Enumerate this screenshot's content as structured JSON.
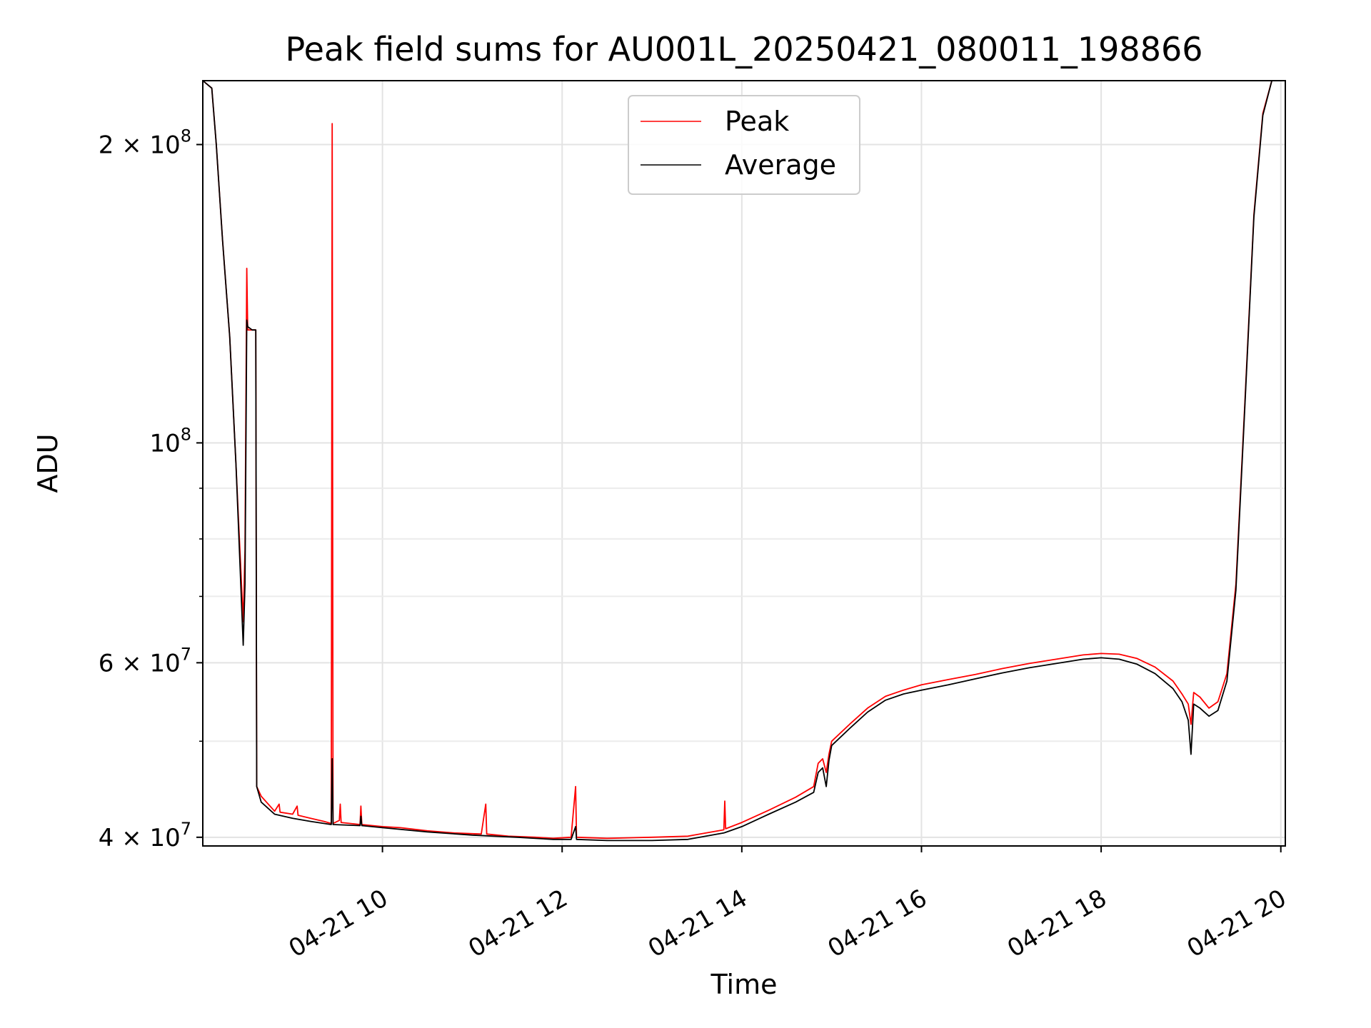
{
  "chart_data": {
    "type": "line",
    "title": "Peak field sums for AU001L_20250421_080011_198866",
    "xlabel": "Time",
    "ylabel": "ADU",
    "yscale": "log",
    "xlim": [
      8.0,
      20.05
    ],
    "ylim": [
      39200000,
      232000000
    ],
    "grid": true,
    "legend_position": "top-center",
    "x_ticks": [
      {
        "value": 10,
        "label": "04-21 10"
      },
      {
        "value": 12,
        "label": "04-21 12"
      },
      {
        "value": 14,
        "label": "04-21 14"
      },
      {
        "value": 16,
        "label": "04-21 16"
      },
      {
        "value": 18,
        "label": "04-21 18"
      },
      {
        "value": 20,
        "label": "04-21 20"
      }
    ],
    "y_ticks": [
      {
        "value": 40000000,
        "mantissa": "4",
        "exponent": "7"
      },
      {
        "value": 60000000,
        "mantissa": "6",
        "exponent": "7"
      },
      {
        "value": 100000000,
        "mantissa": "",
        "exponent": "8"
      },
      {
        "value": 200000000,
        "mantissa": "2",
        "exponent": "8"
      }
    ],
    "y_times_sign": "×",
    "y_base": "10",
    "y_minor_ticks": [
      50000000,
      70000000,
      80000000,
      90000000
    ],
    "series": [
      {
        "name": "Peak",
        "color": "#ff0000",
        "points": [
          [
            8.0,
            232000000
          ],
          [
            8.1,
            228000000
          ],
          [
            8.15,
            200000000
          ],
          [
            8.22,
            160000000
          ],
          [
            8.3,
            128000000
          ],
          [
            8.37,
            95000000
          ],
          [
            8.45,
            66000000
          ],
          [
            8.47,
            78000000
          ],
          [
            8.49,
            150000000
          ],
          [
            8.5,
            130000000
          ],
          [
            8.55,
            130000000
          ],
          [
            8.59,
            130000000
          ],
          [
            8.6,
            45000000
          ],
          [
            8.65,
            44000000
          ],
          [
            8.8,
            42500000
          ],
          [
            8.85,
            43200000
          ],
          [
            8.86,
            42400000
          ],
          [
            9.0,
            42200000
          ],
          [
            9.05,
            43000000
          ],
          [
            9.06,
            42100000
          ],
          [
            9.2,
            41800000
          ],
          [
            9.35,
            41500000
          ],
          [
            9.43,
            41300000
          ],
          [
            9.44,
            210000000
          ],
          [
            9.45,
            41300000
          ],
          [
            9.52,
            41600000
          ],
          [
            9.53,
            43200000
          ],
          [
            9.54,
            41400000
          ],
          [
            9.75,
            41200000
          ],
          [
            9.76,
            43000000
          ],
          [
            9.77,
            41200000
          ],
          [
            10.0,
            41000000
          ],
          [
            10.2,
            40900000
          ],
          [
            10.5,
            40600000
          ],
          [
            10.8,
            40400000
          ],
          [
            11.1,
            40300000
          ],
          [
            11.15,
            43200000
          ],
          [
            11.16,
            40300000
          ],
          [
            11.4,
            40100000
          ],
          [
            11.7,
            40000000
          ],
          [
            11.9,
            39900000
          ],
          [
            12.1,
            40000000
          ],
          [
            12.15,
            45000000
          ],
          [
            12.16,
            40000000
          ],
          [
            12.5,
            39900000
          ],
          [
            13.0,
            40000000
          ],
          [
            13.4,
            40100000
          ],
          [
            13.8,
            40700000
          ],
          [
            13.81,
            43500000
          ],
          [
            13.82,
            40800000
          ],
          [
            14.0,
            41400000
          ],
          [
            14.3,
            42600000
          ],
          [
            14.6,
            43900000
          ],
          [
            14.8,
            45000000
          ],
          [
            14.85,
            47500000
          ],
          [
            14.9,
            48000000
          ],
          [
            14.94,
            46500000
          ],
          [
            14.97,
            48500000
          ],
          [
            15.0,
            50000000
          ],
          [
            15.2,
            52000000
          ],
          [
            15.4,
            54000000
          ],
          [
            15.6,
            55500000
          ],
          [
            15.8,
            56300000
          ],
          [
            16.0,
            57000000
          ],
          [
            16.3,
            57700000
          ],
          [
            16.6,
            58400000
          ],
          [
            16.9,
            59200000
          ],
          [
            17.2,
            59900000
          ],
          [
            17.5,
            60500000
          ],
          [
            17.8,
            61100000
          ],
          [
            18.0,
            61300000
          ],
          [
            18.2,
            61200000
          ],
          [
            18.4,
            60600000
          ],
          [
            18.6,
            59400000
          ],
          [
            18.8,
            57500000
          ],
          [
            18.9,
            55800000
          ],
          [
            18.97,
            54500000
          ],
          [
            19.0,
            52000000
          ],
          [
            19.03,
            56000000
          ],
          [
            19.1,
            55400000
          ],
          [
            19.2,
            54000000
          ],
          [
            19.3,
            54800000
          ],
          [
            19.4,
            58500000
          ],
          [
            19.5,
            72000000
          ],
          [
            19.6,
            110000000
          ],
          [
            19.7,
            170000000
          ],
          [
            19.8,
            215000000
          ],
          [
            19.9,
            232000000
          ],
          [
            20.05,
            232000000
          ]
        ]
      },
      {
        "name": "Average",
        "color": "#000000",
        "points": [
          [
            8.0,
            232000000
          ],
          [
            8.1,
            228000000
          ],
          [
            8.15,
            200000000
          ],
          [
            8.22,
            160000000
          ],
          [
            8.3,
            128000000
          ],
          [
            8.37,
            95000000
          ],
          [
            8.45,
            62500000
          ],
          [
            8.47,
            72000000
          ],
          [
            8.49,
            133000000
          ],
          [
            8.5,
            131000000
          ],
          [
            8.55,
            130000000
          ],
          [
            8.59,
            130000000
          ],
          [
            8.6,
            45000000
          ],
          [
            8.65,
            43400000
          ],
          [
            8.8,
            42200000
          ],
          [
            9.0,
            41800000
          ],
          [
            9.2,
            41500000
          ],
          [
            9.43,
            41200000
          ],
          [
            9.44,
            48000000
          ],
          [
            9.45,
            41200000
          ],
          [
            9.75,
            41100000
          ],
          [
            9.76,
            42000000
          ],
          [
            9.77,
            41100000
          ],
          [
            10.0,
            40900000
          ],
          [
            10.5,
            40500000
          ],
          [
            11.0,
            40200000
          ],
          [
            11.5,
            40000000
          ],
          [
            11.9,
            39800000
          ],
          [
            12.1,
            39800000
          ],
          [
            12.15,
            41000000
          ],
          [
            12.16,
            39800000
          ],
          [
            12.5,
            39700000
          ],
          [
            13.0,
            39700000
          ],
          [
            13.4,
            39800000
          ],
          [
            13.8,
            40400000
          ],
          [
            14.0,
            41000000
          ],
          [
            14.3,
            42200000
          ],
          [
            14.6,
            43400000
          ],
          [
            14.8,
            44400000
          ],
          [
            14.85,
            46500000
          ],
          [
            14.9,
            47000000
          ],
          [
            14.94,
            45000000
          ],
          [
            14.97,
            47800000
          ],
          [
            15.0,
            49500000
          ],
          [
            15.2,
            51500000
          ],
          [
            15.4,
            53500000
          ],
          [
            15.6,
            55000000
          ],
          [
            15.8,
            55800000
          ],
          [
            16.0,
            56300000
          ],
          [
            16.3,
            57000000
          ],
          [
            16.6,
            57800000
          ],
          [
            16.9,
            58600000
          ],
          [
            17.2,
            59300000
          ],
          [
            17.5,
            59900000
          ],
          [
            17.8,
            60500000
          ],
          [
            18.0,
            60700000
          ],
          [
            18.2,
            60500000
          ],
          [
            18.4,
            59800000
          ],
          [
            18.6,
            58500000
          ],
          [
            18.8,
            56500000
          ],
          [
            18.9,
            54800000
          ],
          [
            18.97,
            52500000
          ],
          [
            19.0,
            48500000
          ],
          [
            19.03,
            54500000
          ],
          [
            19.1,
            54000000
          ],
          [
            19.2,
            53000000
          ],
          [
            19.3,
            53700000
          ],
          [
            19.4,
            57500000
          ],
          [
            19.5,
            71000000
          ],
          [
            19.6,
            109000000
          ],
          [
            19.7,
            169000000
          ],
          [
            19.8,
            214000000
          ],
          [
            19.9,
            232000000
          ],
          [
            20.05,
            232000000
          ]
        ]
      }
    ]
  }
}
